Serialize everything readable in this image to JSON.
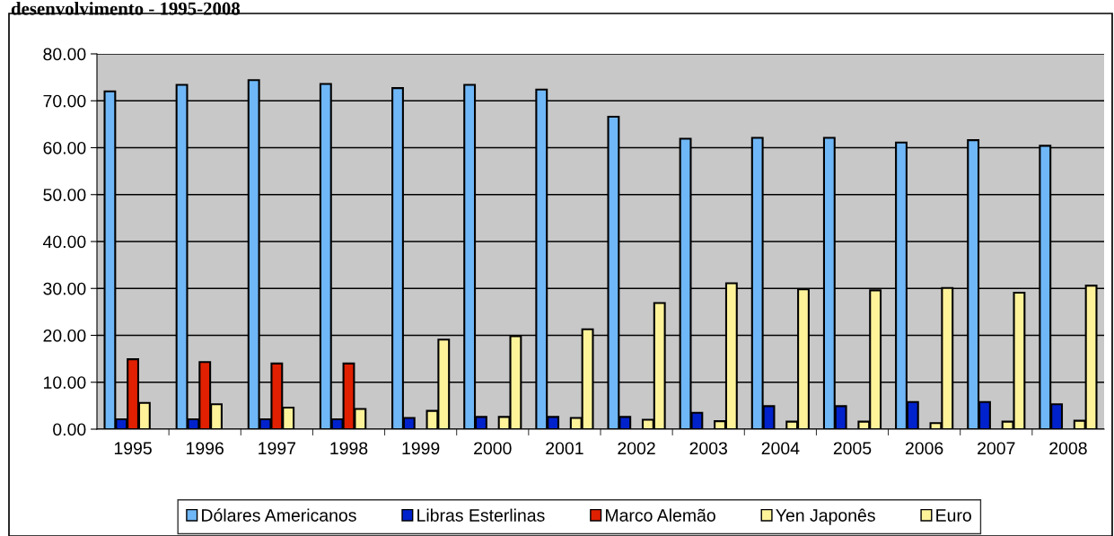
{
  "chart_data": {
    "type": "bar",
    "title": "desenvolvimento - 1995-2008",
    "categories": [
      "1995",
      "1996",
      "1997",
      "1998",
      "1999",
      "2000",
      "2001",
      "2002",
      "2003",
      "2004",
      "2005",
      "2006",
      "2007",
      "2008"
    ],
    "series": [
      {
        "name": "Dólares Americanos",
        "color": "#6fb7f7",
        "values": [
          72.0,
          73.4,
          74.4,
          73.6,
          72.7,
          73.4,
          72.4,
          66.6,
          61.9,
          62.1,
          62.1,
          61.1,
          61.6,
          60.4
        ]
      },
      {
        "name": "Libras Esterlinas",
        "color": "#0022cc",
        "values": [
          2.1,
          2.1,
          2.1,
          2.1,
          2.4,
          2.6,
          2.6,
          2.6,
          3.5,
          4.9,
          4.9,
          5.8,
          5.8,
          5.3
        ]
      },
      {
        "name": "Marco Alemão",
        "color": "#e02000",
        "values": [
          14.9,
          14.3,
          14.0,
          14.0,
          null,
          null,
          null,
          null,
          null,
          null,
          null,
          null,
          null,
          null
        ]
      },
      {
        "name": "Yen Japonês",
        "color": "#fff39a",
        "values": [
          5.6,
          5.3,
          4.6,
          4.3,
          3.9,
          2.6,
          2.4,
          2.0,
          1.7,
          1.6,
          1.6,
          1.3,
          1.6,
          1.8
        ]
      },
      {
        "name": "Euro",
        "color": "#fff39a",
        "values": [
          null,
          null,
          null,
          null,
          19.1,
          19.8,
          21.3,
          26.9,
          31.1,
          29.8,
          29.6,
          30.1,
          29.1,
          30.6
        ]
      }
    ],
    "ylim": [
      0,
      80
    ],
    "yticks": [
      {
        "value": 0,
        "label": "0.00"
      },
      {
        "value": 10,
        "label": "10.00"
      },
      {
        "value": 20,
        "label": "20.00"
      },
      {
        "value": 30,
        "label": "30.00"
      },
      {
        "value": 40,
        "label": "40.00"
      },
      {
        "value": 50,
        "label": "50.00"
      },
      {
        "value": 60,
        "label": "60.00"
      },
      {
        "value": 70,
        "label": "70.00"
      },
      {
        "value": 80,
        "label": "80.00"
      }
    ],
    "grid": "y",
    "legend": "bottom"
  }
}
